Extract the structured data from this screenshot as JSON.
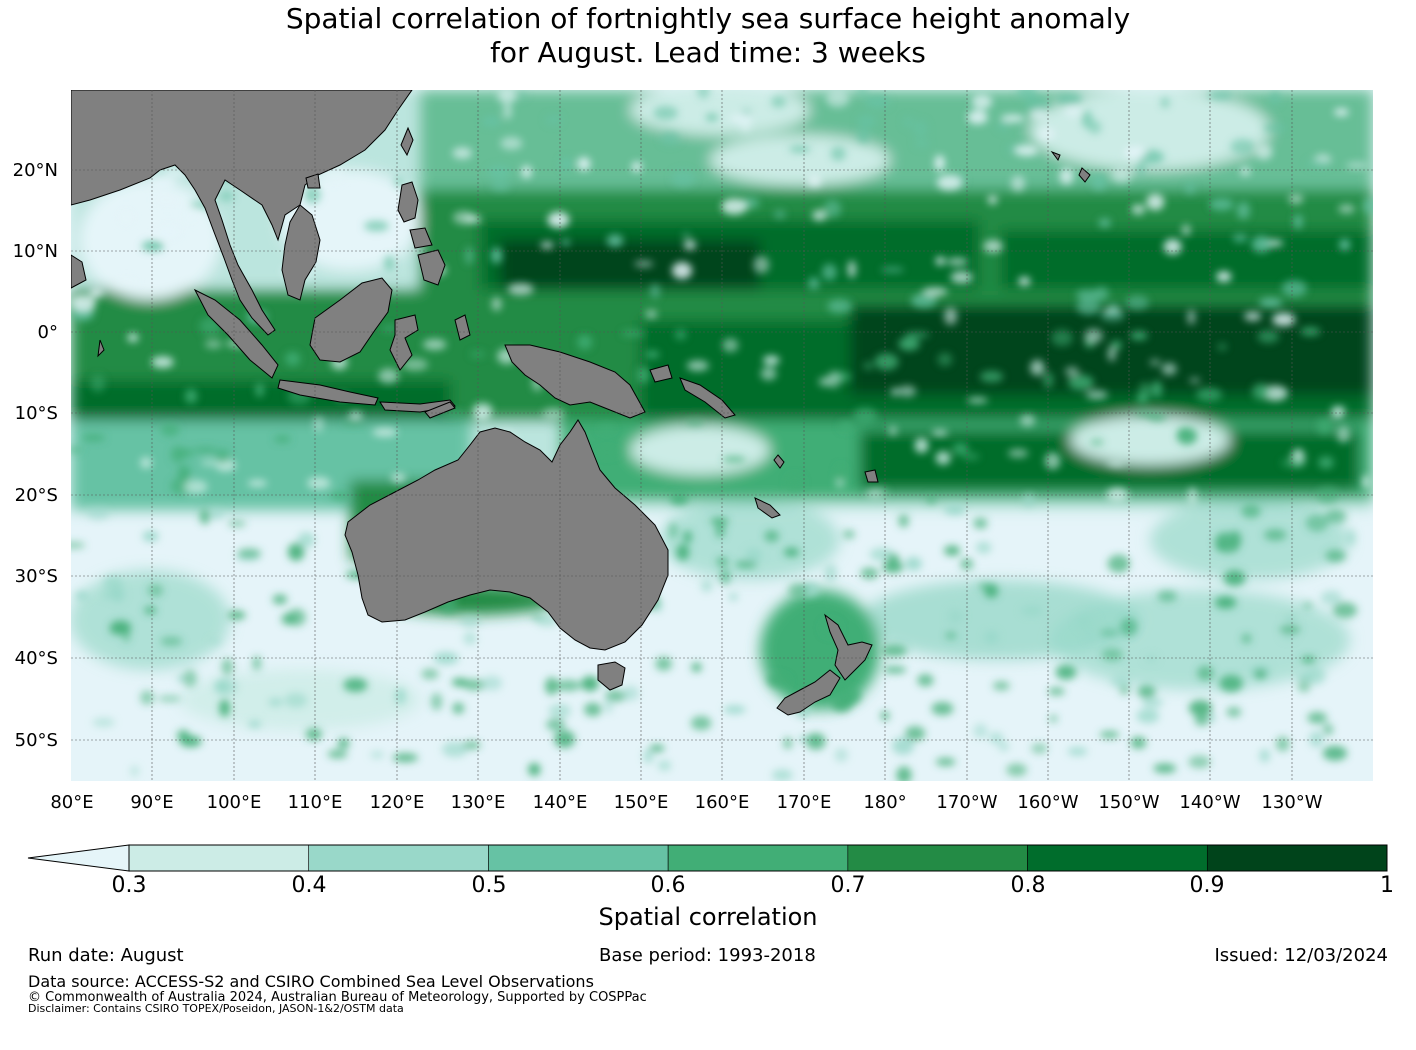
{
  "title_line1": "Spatial correlation of fortnightly sea surface height anomaly",
  "title_line2": "for August. Lead time: 3 weeks",
  "map": {
    "lon_labels": [
      "80°E",
      "90°E",
      "100°E",
      "110°E",
      "120°E",
      "130°E",
      "140°E",
      "150°E",
      "160°E",
      "170°E",
      "180°",
      "170°W",
      "160°W",
      "150°W",
      "140°W",
      "130°W"
    ],
    "lat_labels": [
      "20°N",
      "10°N",
      "0°",
      "10°S",
      "20°S",
      "30°S",
      "40°S",
      "50°S"
    ],
    "ocean_color": "#e5f4f9",
    "land_color": "#808080",
    "regions": [
      "Australia",
      "New Zealand",
      "Papua New Guinea",
      "Indonesia",
      "Philippines",
      "Southeast Asia"
    ]
  },
  "colorbar": {
    "levels": [
      "0.3",
      "0.4",
      "0.5",
      "0.6",
      "0.7",
      "0.8",
      "0.9",
      "1"
    ],
    "colors": [
      "#e5f5f9",
      "#ccece6",
      "#99d8c9",
      "#66c2a4",
      "#41ae76",
      "#238b45",
      "#006d2c",
      "#00441b"
    ],
    "label": "Spatial correlation"
  },
  "footer": {
    "run_date": "Run date: August",
    "base_period": "Base period: 1993-2018",
    "issued": "Issued: 12/03/2024",
    "data_source": "Data source: ACCESS-S2 and CSIRO Combined Sea Level Observations",
    "copyright": "© Commonwealth of Australia 2024, Australian Bureau of Meteorology, Supported by COSPPac",
    "disclaimer": "Disclaimer: Contains CSIRO TOPEX/Poseidon, JASON-1&2/OSTM data"
  }
}
